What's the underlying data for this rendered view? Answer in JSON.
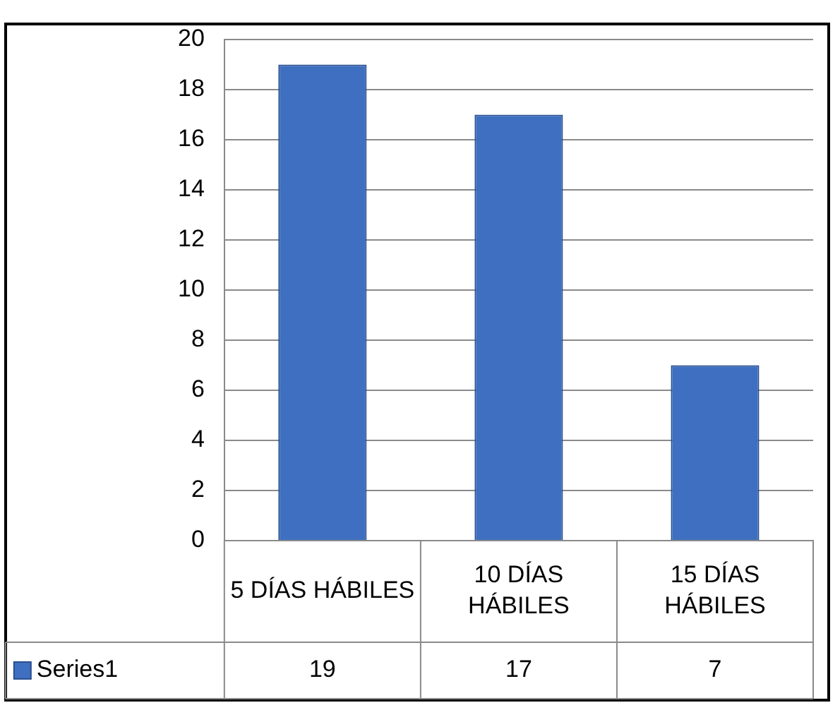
{
  "chart_data": {
    "type": "bar",
    "categories": [
      "5 DÍAS HÁBILES",
      "10 DÍAS HÁBILES",
      "15 DÍAS HÁBILES"
    ],
    "series": [
      {
        "name": "Series1",
        "color": "#3e6fc0",
        "values": [
          19,
          17,
          7
        ]
      }
    ],
    "ylim": [
      0,
      20
    ],
    "yticks": [
      0,
      2,
      4,
      6,
      8,
      10,
      12,
      14,
      16,
      18,
      20
    ],
    "grid": "y",
    "legend": "bottom",
    "data_labels": true
  }
}
